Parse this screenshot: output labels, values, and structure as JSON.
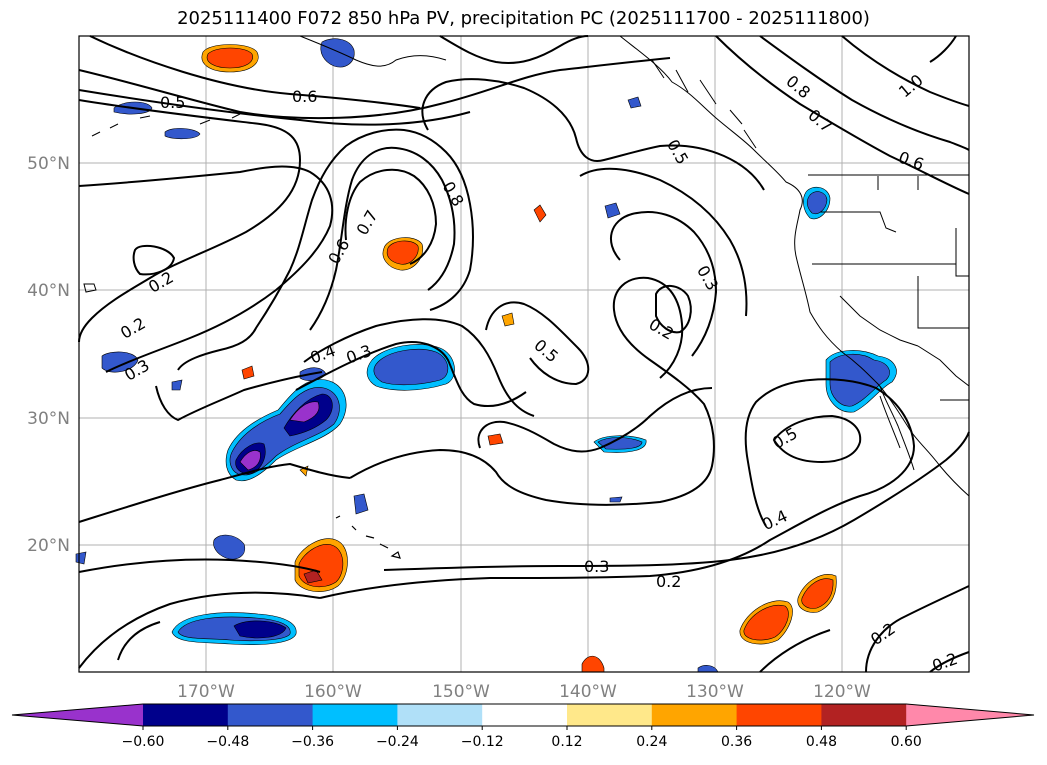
{
  "title": "2025111400 F072 850 hPa PV, precipitation PC (2025111700 - 2025111800)",
  "map": {
    "lat_ticks": [
      "50°N",
      "40°N",
      "30°N",
      "20°N"
    ],
    "lon_ticks": [
      "170°W",
      "160°W",
      "150°W",
      "140°W",
      "130°W",
      "120°W"
    ]
  },
  "contour_labels": [
    {
      "text": "0.5"
    },
    {
      "text": "0.6"
    },
    {
      "text": "0.8"
    },
    {
      "text": "0.7"
    },
    {
      "text": "0.6"
    },
    {
      "text": "0.8"
    },
    {
      "text": "0.7"
    },
    {
      "text": "0.5"
    },
    {
      "text": "0.3"
    },
    {
      "text": "0.2"
    },
    {
      "text": "0.5"
    },
    {
      "text": "0.4"
    },
    {
      "text": "0.3"
    },
    {
      "text": "0.2"
    },
    {
      "text": "0.2"
    },
    {
      "text": "0.3"
    },
    {
      "text": "0.5"
    },
    {
      "text": "0.4"
    },
    {
      "text": "0.3"
    },
    {
      "text": "0.2"
    },
    {
      "text": "0.2"
    },
    {
      "text": "0.2"
    },
    {
      "text": "1.0"
    },
    {
      "text": "0.6"
    }
  ],
  "colorbar": {
    "labels": [
      "−0.60",
      "−0.48",
      "−0.36",
      "−0.24",
      "−0.12",
      "0.12",
      "0.24",
      "0.36",
      "0.48",
      "0.60"
    ],
    "colors": [
      "#9932cc",
      "#00008b",
      "#3358cc",
      "#00bfff",
      "#b0e0f8",
      "#ffffff",
      "#ffe88a",
      "#ffa500",
      "#ff4500",
      "#b22222",
      "#ff88aa"
    ]
  }
}
